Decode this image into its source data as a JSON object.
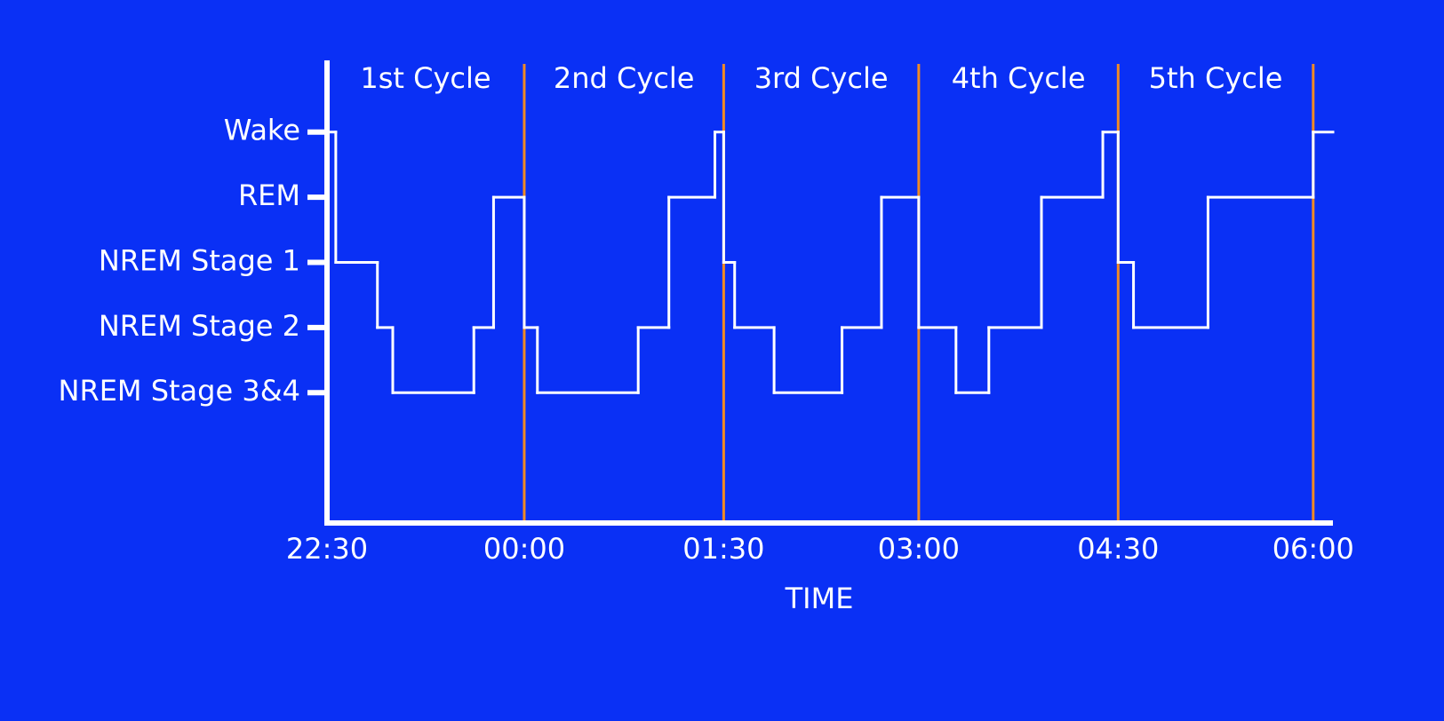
{
  "chart_data": {
    "type": "step",
    "xlabel": "TIME",
    "x": [
      0,
      4,
      23,
      30,
      67,
      76,
      90,
      96,
      142,
      156,
      177,
      181,
      186,
      204,
      235,
      253,
      270,
      287,
      302,
      326,
      354,
      361,
      368,
      402,
      450
    ],
    "series": [
      {
        "color": "#ffffff",
        "values": [
          5,
          3,
          2,
          1,
          2,
          4,
          2,
          1,
          2,
          4,
          5,
          3,
          2,
          1,
          2,
          4,
          2,
          1,
          2,
          4,
          5,
          3,
          2,
          4,
          5
        ]
      }
    ],
    "xlim": [
      0,
      459
    ],
    "xticks": [
      {
        "value": 0,
        "label": "22:30"
      },
      {
        "value": 90,
        "label": "00:00"
      },
      {
        "value": 181,
        "label": "01:30"
      },
      {
        "value": 270,
        "label": "03:00"
      },
      {
        "value": 361,
        "label": "04:30"
      },
      {
        "value": 450,
        "label": "06:00"
      }
    ],
    "ylim": [
      -1,
      6.1
    ],
    "yticks": [
      {
        "value": 5,
        "label": "Wake"
      },
      {
        "value": 4,
        "label": "REM"
      },
      {
        "value": 3,
        "label": "NREM Stage 1"
      },
      {
        "value": 2,
        "label": "NREM Stage 2"
      },
      {
        "value": 1,
        "label": "NREM Stage 3&4"
      }
    ],
    "cycle_labels": [
      "1st Cycle",
      "2nd Cycle",
      "3rd Cycle",
      "4th Cycle",
      "5th Cycle"
    ],
    "cycle_line_color": "#f08a24",
    "background": "#0a30f5"
  }
}
